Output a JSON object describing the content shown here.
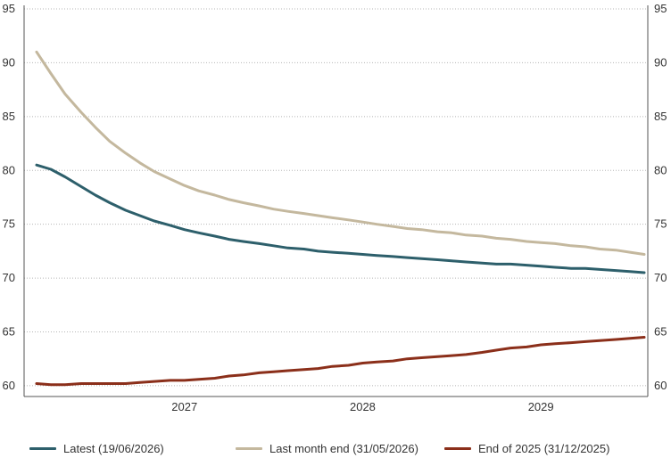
{
  "chart_data": {
    "type": "line",
    "title": "",
    "xlabel": "",
    "ylabel": "",
    "x_tick_labels": [
      "2027",
      "2028",
      "2029"
    ],
    "x_tick_positions": [
      2027.0,
      2028.0,
      2029.0
    ],
    "xlim": [
      2026.1,
      2029.6
    ],
    "ylim": [
      59,
      95
    ],
    "y_ticks": [
      60,
      65,
      70,
      75,
      80,
      85,
      90,
      95
    ],
    "y_axes": "both",
    "grid": "horizontal-dotted",
    "legend_placement": "bottom",
    "series": [
      {
        "name": "Latest (19/06/2026)",
        "color": "#2d5f6b",
        "x": [
          2026.17,
          2026.25,
          2026.33,
          2026.42,
          2026.5,
          2026.58,
          2026.67,
          2026.75,
          2026.83,
          2026.92,
          2027.0,
          2027.08,
          2027.17,
          2027.25,
          2027.33,
          2027.42,
          2027.5,
          2027.58,
          2027.67,
          2027.75,
          2027.83,
          2027.92,
          2028.0,
          2028.08,
          2028.17,
          2028.25,
          2028.33,
          2028.42,
          2028.5,
          2028.58,
          2028.67,
          2028.75,
          2028.83,
          2028.92,
          2029.0,
          2029.08,
          2029.17,
          2029.25,
          2029.33,
          2029.42,
          2029.5,
          2029.58
        ],
        "y": [
          80.5,
          80.1,
          79.4,
          78.5,
          77.7,
          77.0,
          76.3,
          75.8,
          75.3,
          74.9,
          74.5,
          74.2,
          73.9,
          73.6,
          73.4,
          73.2,
          73.0,
          72.8,
          72.7,
          72.5,
          72.4,
          72.3,
          72.2,
          72.1,
          72.0,
          71.9,
          71.8,
          71.7,
          71.6,
          71.5,
          71.4,
          71.3,
          71.3,
          71.2,
          71.1,
          71.0,
          70.9,
          70.9,
          70.8,
          70.7,
          70.6,
          70.5
        ]
      },
      {
        "name": "Last month end (31/05/2026)",
        "color": "#c4b89e",
        "x": [
          2026.17,
          2026.25,
          2026.33,
          2026.42,
          2026.5,
          2026.58,
          2026.67,
          2026.75,
          2026.83,
          2026.92,
          2027.0,
          2027.08,
          2027.17,
          2027.25,
          2027.33,
          2027.42,
          2027.5,
          2027.58,
          2027.67,
          2027.75,
          2027.83,
          2027.92,
          2028.0,
          2028.08,
          2028.17,
          2028.25,
          2028.33,
          2028.42,
          2028.5,
          2028.58,
          2028.67,
          2028.75,
          2028.83,
          2028.92,
          2029.0,
          2029.08,
          2029.17,
          2029.25,
          2029.33,
          2029.42,
          2029.5,
          2029.58
        ],
        "y": [
          91.0,
          89.0,
          87.1,
          85.4,
          84.0,
          82.7,
          81.6,
          80.7,
          79.9,
          79.2,
          78.6,
          78.1,
          77.7,
          77.3,
          77.0,
          76.7,
          76.4,
          76.2,
          76.0,
          75.8,
          75.6,
          75.4,
          75.2,
          75.0,
          74.8,
          74.6,
          74.5,
          74.3,
          74.2,
          74.0,
          73.9,
          73.7,
          73.6,
          73.4,
          73.3,
          73.2,
          73.0,
          72.9,
          72.7,
          72.6,
          72.4,
          72.2
        ]
      },
      {
        "name": "End of 2025 (31/12/2025)",
        "color": "#8b2f1a",
        "x": [
          2026.17,
          2026.25,
          2026.33,
          2026.42,
          2026.5,
          2026.58,
          2026.67,
          2026.75,
          2026.83,
          2026.92,
          2027.0,
          2027.08,
          2027.17,
          2027.25,
          2027.33,
          2027.42,
          2027.5,
          2027.58,
          2027.67,
          2027.75,
          2027.83,
          2027.92,
          2028.0,
          2028.08,
          2028.17,
          2028.25,
          2028.33,
          2028.42,
          2028.5,
          2028.58,
          2028.67,
          2028.75,
          2028.83,
          2028.92,
          2029.0,
          2029.08,
          2029.17,
          2029.25,
          2029.33,
          2029.42,
          2029.5,
          2029.58
        ],
        "y": [
          60.2,
          60.1,
          60.1,
          60.2,
          60.2,
          60.2,
          60.2,
          60.3,
          60.4,
          60.5,
          60.5,
          60.6,
          60.7,
          60.9,
          61.0,
          61.2,
          61.3,
          61.4,
          61.5,
          61.6,
          61.8,
          61.9,
          62.1,
          62.2,
          62.3,
          62.5,
          62.6,
          62.7,
          62.8,
          62.9,
          63.1,
          63.3,
          63.5,
          63.6,
          63.8,
          63.9,
          64.0,
          64.1,
          64.2,
          64.3,
          64.4,
          64.5
        ]
      }
    ]
  }
}
